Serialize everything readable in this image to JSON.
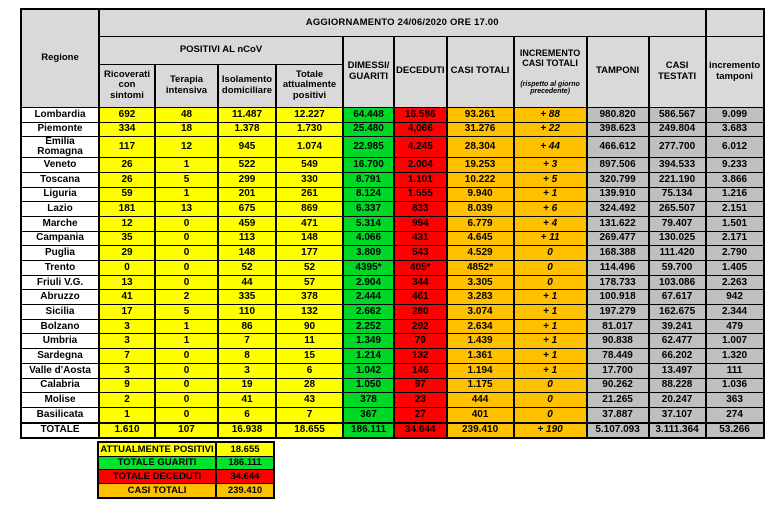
{
  "title": "AGGIORNAMENTO 24/06/2020 ORE 17.00",
  "colors": {
    "yellow": "#FFFF00",
    "green": "#00D828",
    "red": "#FF0000",
    "orange": "#FFC000",
    "gray_data": "#BFBFBF",
    "gray_header": "#D9D9D9"
  },
  "table": {
    "region_header": "Regione",
    "group_header": "POSITIVI AL nCoV",
    "sub_headers": [
      "Ricoverati\ncon sintomi",
      "Terapia\nintensiva",
      "Isolamento\ndomiciliare",
      "Totale\nattualmente\npositivi"
    ],
    "headers": {
      "dimessi": "DIMESSI/\nGUARITI",
      "deceduti": "DECEDUTI",
      "casi_totali": "CASI TOTALI",
      "incremento_main": "INCREMENTO\nCASI  TOTALI",
      "incremento_note": "(rispetto al giorno\nprecedente)",
      "tamponi": "TAMPONI",
      "casi_testati": "CASI\nTESTATI",
      "incremento_tamponi": "incremento\ntamponi"
    },
    "rows": [
      [
        "Lombardia",
        "692",
        "48",
        "11.487",
        "12.227",
        "64.448",
        "16.586",
        "93.261",
        "+ 88",
        "980.820",
        "586.567",
        "9.099"
      ],
      [
        "Piemonte",
        "334",
        "18",
        "1.378",
        "1.730",
        "25.480",
        "4,066",
        "31.276",
        "+ 22",
        "398.623",
        "249.804",
        "3.683"
      ],
      [
        "Emilia Romagna",
        "117",
        "12",
        "945",
        "1.074",
        "22.985",
        "4.245",
        "28.304",
        "+ 44",
        "466.612",
        "277.700",
        "6.012"
      ],
      [
        "Veneto",
        "26",
        "1",
        "522",
        "549",
        "16.700",
        "2.004",
        "19.253",
        "+ 3",
        "897.506",
        "394.533",
        "9.233"
      ],
      [
        "Toscana",
        "26",
        "5",
        "299",
        "330",
        "8.791",
        "1.101",
        "10.222",
        "+ 5",
        "320.799",
        "221.190",
        "3.866"
      ],
      [
        "Liguria",
        "59",
        "1",
        "201",
        "261",
        "8.124",
        "1.555",
        "9.940",
        "+ 1",
        "139.910",
        "75.134",
        "1.216"
      ],
      [
        "Lazio",
        "181",
        "13",
        "675",
        "869",
        "6.337",
        "833",
        "8.039",
        "+ 6",
        "324.492",
        "265.507",
        "2.151"
      ],
      [
        "Marche",
        "12",
        "0",
        "459",
        "471",
        "5.314",
        "994",
        "6.779",
        "+ 4",
        "131.622",
        "79.407",
        "1.501"
      ],
      [
        "Campania",
        "35",
        "0",
        "113",
        "148",
        "4.066",
        "431",
        "4.645",
        "+ 11",
        "269.477",
        "130.025",
        "2.171"
      ],
      [
        "Puglia",
        "29",
        "0",
        "148",
        "177",
        "3.809",
        "543",
        "4.529",
        "0",
        "168.388",
        "111.420",
        "2.790"
      ],
      [
        "Trento",
        "0",
        "0",
        "52",
        "52",
        "4395*",
        "405*",
        "4852*",
        "0",
        "114.496",
        "59.700",
        "1.405"
      ],
      [
        "Friuli V.G.",
        "13",
        "0",
        "44",
        "57",
        "2.904",
        "344",
        "3.305",
        "0",
        "178.733",
        "103.086",
        "2.263"
      ],
      [
        "Abruzzo",
        "41",
        "2",
        "335",
        "378",
        "2.444",
        "461",
        "3.283",
        "+ 1",
        "100.918",
        "67.617",
        "942"
      ],
      [
        "Sicilia",
        "17",
        "5",
        "110",
        "132",
        "2.662",
        "280",
        "3.074",
        "+ 1",
        "197.279",
        "162.675",
        "2.344"
      ],
      [
        "Bolzano",
        "3",
        "1",
        "86",
        "90",
        "2.252",
        "292",
        "2.634",
        "+ 1",
        "81.017",
        "39.241",
        "479"
      ],
      [
        "Umbria",
        "3",
        "1",
        "7",
        "11",
        "1.349",
        "79",
        "1.439",
        "+ 1",
        "90.838",
        "62.477",
        "1.007"
      ],
      [
        "Sardegna",
        "7",
        "0",
        "8",
        "15",
        "1.214",
        "132",
        "1.361",
        "+ 1",
        "78.449",
        "66.202",
        "1.320"
      ],
      [
        "Valle d'Aosta",
        "3",
        "0",
        "3",
        "6",
        "1.042",
        "146",
        "1.194",
        "+ 1",
        "17.700",
        "13.497",
        "111"
      ],
      [
        "Calabria",
        "9",
        "0",
        "19",
        "28",
        "1.050",
        "97",
        "1.175",
        "0",
        "90.262",
        "88.228",
        "1.036"
      ],
      [
        "Molise",
        "2",
        "0",
        "41",
        "43",
        "378",
        "23",
        "444",
        "0",
        "21.265",
        "20.247",
        "363"
      ],
      [
        "Basilicata",
        "1",
        "0",
        "6",
        "7",
        "367",
        "27",
        "401",
        "0",
        "37.887",
        "37.107",
        "274"
      ]
    ],
    "total_row": [
      "TOTALE",
      "1.610",
      "107",
      "16.938",
      "18.655",
      "186.111",
      "34.644",
      "239.410",
      "+ 190",
      "5.107.093",
      "3.111.364",
      "53.266"
    ]
  },
  "summary": {
    "rows": [
      {
        "label": "ATTUALMENTE POSITIVI",
        "value": "18.655",
        "color": "yellow"
      },
      {
        "label": "TOTALE GUARITI",
        "value": "186.111",
        "color": "green"
      },
      {
        "label": "TOTALE DECEDUTI",
        "value": "34.644",
        "color": "red"
      },
      {
        "label": "CASI TOTALI",
        "value": "239.410",
        "color": "orange"
      }
    ]
  }
}
